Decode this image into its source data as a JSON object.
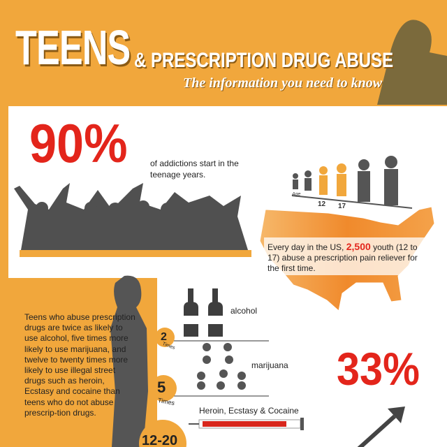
{
  "header": {
    "title": "TEENS",
    "title_rest": "& PRESCRIPTION DRUG ABUSE",
    "subtitle": "The information you need to know"
  },
  "stat_addictions": {
    "value": "90%",
    "text": "of addictions start in the teenage years."
  },
  "age_chart": {
    "axis_label": "Age",
    "labels": [
      "12",
      "17"
    ]
  },
  "map_note": {
    "before": "Every day in the US,",
    "highlight": "2,500",
    "after": "youth (12 to 17) abuse a prescription pain reliever for the first time."
  },
  "comparison": {
    "text": "Teens who abuse prescription drugs are twice as likely to use alcohol, five times more likely to use marijuana, and twelve to twenty times more likely to use illegal street drugs such as heroin, Ecstasy and cocaine than teens who do not abuse prescrip-tion drugs.",
    "items": [
      {
        "label": "alcohol",
        "multiplier": "2",
        "unit": "Times"
      },
      {
        "label": "marijuana",
        "multiplier": "5",
        "unit": "Times"
      },
      {
        "label": "Heroin, Ecstasy & Cocaine",
        "multiplier": "12-20"
      }
    ]
  },
  "stat_33": "33%"
}
